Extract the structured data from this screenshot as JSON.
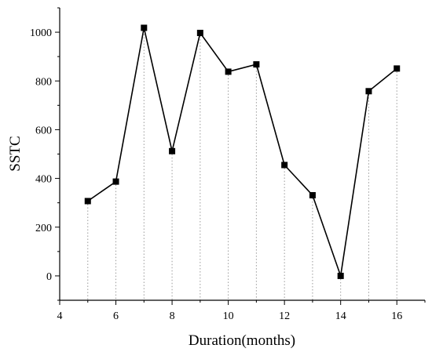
{
  "chart_data": {
    "type": "line",
    "title": "",
    "xlabel": "Duration(months)",
    "ylabel": "SSTC",
    "xlim": [
      4,
      17
    ],
    "ylim": [
      -100,
      1100
    ],
    "xticks": [
      4,
      6,
      8,
      10,
      12,
      14,
      16
    ],
    "yticks": [
      0,
      200,
      400,
      600,
      800,
      1000
    ],
    "grid": false,
    "drop_lines": true,
    "marker": "square",
    "series": [
      {
        "x": [
          5,
          6,
          7,
          8,
          9,
          10,
          11,
          12,
          13,
          14,
          15,
          16
        ],
        "values": [
          307,
          387,
          1018,
          512,
          997,
          838,
          868,
          455,
          331,
          0,
          758,
          851
        ]
      }
    ],
    "colors": {
      "line": "#000000",
      "drop_line": "#9a9a9a"
    }
  }
}
